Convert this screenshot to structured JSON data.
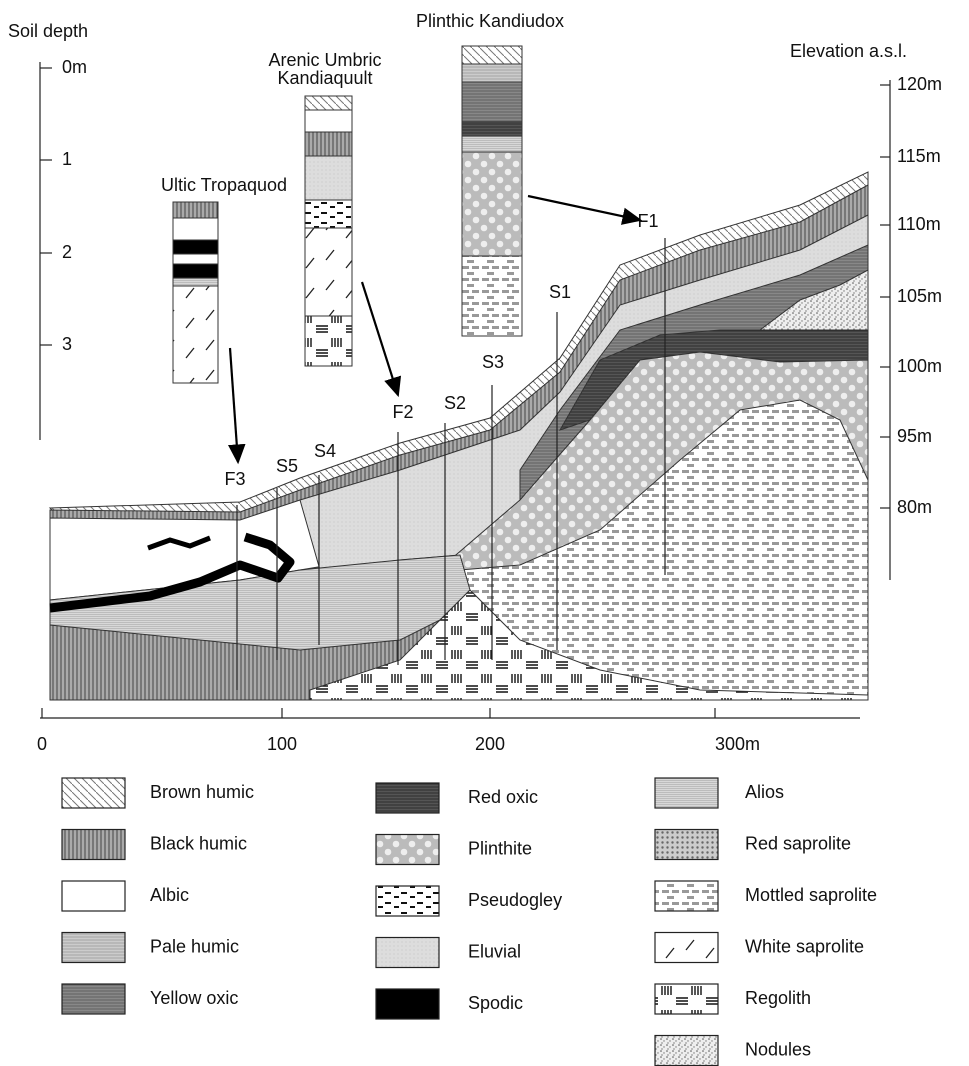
{
  "soil_depth": {
    "title": "Soil depth",
    "ticks": [
      "0m",
      "1",
      "2",
      "3"
    ]
  },
  "elevation": {
    "title": "Elevation a.s.l.",
    "ticks": [
      "120m",
      "115m",
      "110m",
      "105m",
      "100m",
      "95m",
      "80m"
    ]
  },
  "profiles": [
    {
      "name": [
        "Ultic Tropaquod"
      ]
    },
    {
      "name": [
        "Arenic Umbric",
        "Kandiaquult"
      ]
    },
    {
      "name": [
        "Plinthic Kandiudox"
      ]
    }
  ],
  "sites": [
    "F3",
    "S5",
    "S4",
    "F2",
    "S2",
    "S3",
    "S1",
    "F1"
  ],
  "distance_ticks": [
    "0",
    "100",
    "200",
    "300m"
  ],
  "legend": [
    "Brown humic",
    "Black humic",
    "Albic",
    "Pale humic",
    "Yellow oxic",
    "Red oxic",
    "Plinthite",
    "Pseudogley",
    "Eluvial",
    "Spodic",
    "Alios",
    "Red saprolite",
    "Mottled saprolite",
    "White saprolite",
    "Regolith",
    "Nodules"
  ]
}
